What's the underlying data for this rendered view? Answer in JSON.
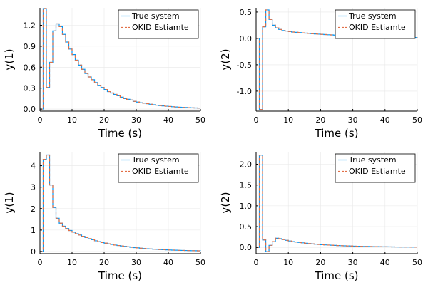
{
  "colors": {
    "true_system": "#009af9",
    "okid_estimate": "#e26f46"
  },
  "chart_data": [
    {
      "type": "line",
      "step": true,
      "xlabel": "Time (s)",
      "ylabel": "y(1)",
      "xlim": [
        0,
        50
      ],
      "ylim": [
        -0.03,
        1.45
      ],
      "xticks": [
        0,
        10,
        20,
        30,
        40,
        50
      ],
      "yticks": [
        0.0,
        0.3,
        0.6,
        0.9,
        1.2
      ],
      "ytick_labels": [
        "0.0",
        "0.3",
        "0.6",
        "0.9",
        "1.2"
      ],
      "legend_position": "top-right",
      "grid": true,
      "series": [
        {
          "name": "True system",
          "style": "solid",
          "values": [
            0,
            1.44,
            0.31,
            0.67,
            1.12,
            1.22,
            1.18,
            1.07,
            0.96,
            0.86,
            0.78,
            0.7,
            0.63,
            0.57,
            0.51,
            0.46,
            0.42,
            0.38,
            0.34,
            0.31,
            0.28,
            0.25,
            0.23,
            0.21,
            0.19,
            0.17,
            0.15,
            0.14,
            0.13,
            0.11,
            0.1,
            0.09,
            0.085,
            0.077,
            0.069,
            0.062,
            0.056,
            0.05,
            0.045,
            0.041,
            0.037,
            0.033,
            0.03,
            0.027,
            0.024,
            0.022,
            0.02,
            0.018,
            0.016,
            0.014,
            0.013
          ]
        },
        {
          "name": "OKID Estiamte",
          "style": "dashed",
          "values": [
            0,
            1.44,
            0.31,
            0.67,
            1.12,
            1.22,
            1.18,
            1.07,
            0.96,
            0.86,
            0.78,
            0.7,
            0.63,
            0.57,
            0.51,
            0.46,
            0.42,
            0.38,
            0.34,
            0.31,
            0.28,
            0.25,
            0.23,
            0.21,
            0.19,
            0.17,
            0.15,
            0.14,
            0.13,
            0.11,
            0.1,
            0.09,
            0.085,
            0.077,
            0.069,
            0.062,
            0.056,
            0.05,
            0.045,
            0.041,
            0.037,
            0.033,
            0.03,
            0.027,
            0.024,
            0.022,
            0.02,
            0.018,
            0.016,
            0.014,
            0.013
          ]
        }
      ]
    },
    {
      "type": "line",
      "step": true,
      "xlabel": "Time (s)",
      "ylabel": "y(2)",
      "xlim": [
        0,
        50
      ],
      "ylim": [
        -1.38,
        0.58
      ],
      "xticks": [
        0,
        10,
        20,
        30,
        40,
        50
      ],
      "yticks": [
        -1.0,
        -0.5,
        0.0,
        0.5
      ],
      "ytick_labels": [
        "-1.0",
        "-0.5",
        "0.0",
        "0.5"
      ],
      "legend_position": "top-right",
      "grid": true,
      "series": [
        {
          "name": "True system",
          "style": "solid",
          "values": [
            0,
            -1.35,
            0.22,
            0.54,
            0.36,
            0.25,
            0.2,
            0.17,
            0.15,
            0.14,
            0.13,
            0.12,
            0.115,
            0.11,
            0.105,
            0.1,
            0.095,
            0.09,
            0.085,
            0.081,
            0.077,
            0.073,
            0.069,
            0.066,
            0.063,
            0.06,
            0.057,
            0.054,
            0.051,
            0.048,
            0.046,
            0.043,
            0.041,
            0.039,
            0.037,
            0.035,
            0.033,
            0.031,
            0.029,
            0.028,
            0.026,
            0.025,
            0.023,
            0.022,
            0.021,
            0.02,
            0.019,
            0.018,
            0.017,
            0.016,
            0.015
          ]
        },
        {
          "name": "OKID Estiamte",
          "style": "dashed",
          "values": [
            0,
            -1.35,
            0.22,
            0.54,
            0.36,
            0.25,
            0.2,
            0.17,
            0.15,
            0.14,
            0.13,
            0.12,
            0.115,
            0.11,
            0.105,
            0.1,
            0.095,
            0.09,
            0.085,
            0.081,
            0.077,
            0.073,
            0.069,
            0.066,
            0.063,
            0.06,
            0.057,
            0.054,
            0.051,
            0.048,
            0.046,
            0.043,
            0.041,
            0.039,
            0.037,
            0.035,
            0.033,
            0.031,
            0.029,
            0.028,
            0.026,
            0.025,
            0.023,
            0.022,
            0.021,
            0.02,
            0.019,
            0.018,
            0.017,
            0.016,
            0.015
          ]
        }
      ]
    },
    {
      "type": "line",
      "step": true,
      "xlabel": "Time (s)",
      "ylabel": "y(1)",
      "xlim": [
        0,
        50
      ],
      "ylim": [
        -0.1,
        4.65
      ],
      "xticks": [
        0,
        10,
        20,
        30,
        40,
        50
      ],
      "yticks": [
        0,
        1,
        2,
        3,
        4
      ],
      "ytick_labels": [
        "0",
        "1",
        "2",
        "3",
        "4"
      ],
      "legend_position": "top-right",
      "grid": true,
      "series": [
        {
          "name": "True system",
          "style": "solid",
          "values": [
            0,
            4.3,
            4.5,
            3.1,
            2.05,
            1.55,
            1.32,
            1.18,
            1.07,
            0.98,
            0.9,
            0.83,
            0.77,
            0.71,
            0.65,
            0.6,
            0.55,
            0.5,
            0.46,
            0.42,
            0.39,
            0.36,
            0.33,
            0.3,
            0.28,
            0.26,
            0.24,
            0.22,
            0.2,
            0.18,
            0.17,
            0.155,
            0.143,
            0.131,
            0.12,
            0.11,
            0.101,
            0.093,
            0.085,
            0.078,
            0.072,
            0.066,
            0.061,
            0.056,
            0.051,
            0.047,
            0.043,
            0.04,
            0.036,
            0.033,
            0.031
          ]
        },
        {
          "name": "OKID Estiamte",
          "style": "dashed",
          "values": [
            0,
            4.3,
            4.5,
            3.1,
            2.05,
            1.55,
            1.32,
            1.18,
            1.07,
            0.98,
            0.9,
            0.83,
            0.77,
            0.71,
            0.65,
            0.6,
            0.55,
            0.5,
            0.46,
            0.42,
            0.39,
            0.36,
            0.33,
            0.3,
            0.28,
            0.26,
            0.24,
            0.22,
            0.2,
            0.18,
            0.17,
            0.155,
            0.143,
            0.131,
            0.12,
            0.11,
            0.101,
            0.093,
            0.085,
            0.078,
            0.072,
            0.066,
            0.061,
            0.056,
            0.051,
            0.047,
            0.043,
            0.04,
            0.036,
            0.033,
            0.031
          ]
        }
      ]
    },
    {
      "type": "line",
      "step": true,
      "xlabel": "Time (s)",
      "ylabel": "y(2)",
      "xlim": [
        0,
        50
      ],
      "ylim": [
        -0.15,
        2.3
      ],
      "xticks": [
        0,
        10,
        20,
        30,
        40,
        50
      ],
      "yticks": [
        0.0,
        0.5,
        1.0,
        1.5,
        2.0
      ],
      "ytick_labels": [
        "0.0",
        "0.5",
        "1.0",
        "1.5",
        "2.0"
      ],
      "legend_position": "top-right",
      "grid": true,
      "series": [
        {
          "name": "True system",
          "style": "solid",
          "values": [
            0,
            2.22,
            0.18,
            -0.1,
            0.05,
            0.14,
            0.22,
            0.21,
            0.19,
            0.17,
            0.155,
            0.14,
            0.13,
            0.12,
            0.11,
            0.1,
            0.092,
            0.085,
            0.078,
            0.072,
            0.066,
            0.061,
            0.057,
            0.053,
            0.049,
            0.045,
            0.042,
            0.039,
            0.036,
            0.034,
            0.031,
            0.029,
            0.027,
            0.025,
            0.023,
            0.022,
            0.02,
            0.019,
            0.018,
            0.016,
            0.015,
            0.014,
            0.013,
            0.012,
            0.011,
            0.0105,
            0.0098,
            0.0091,
            0.0085,
            0.0079,
            0.0073
          ]
        },
        {
          "name": "OKID Estiamte",
          "style": "dashed",
          "values": [
            0,
            2.22,
            0.18,
            -0.1,
            0.05,
            0.14,
            0.22,
            0.21,
            0.19,
            0.17,
            0.155,
            0.14,
            0.13,
            0.12,
            0.11,
            0.1,
            0.092,
            0.085,
            0.078,
            0.072,
            0.066,
            0.061,
            0.057,
            0.053,
            0.049,
            0.045,
            0.042,
            0.039,
            0.036,
            0.034,
            0.031,
            0.029,
            0.027,
            0.025,
            0.023,
            0.022,
            0.02,
            0.019,
            0.018,
            0.016,
            0.015,
            0.014,
            0.013,
            0.012,
            0.011,
            0.0105,
            0.0098,
            0.0091,
            0.0085,
            0.0079,
            0.0073
          ]
        }
      ]
    }
  ]
}
